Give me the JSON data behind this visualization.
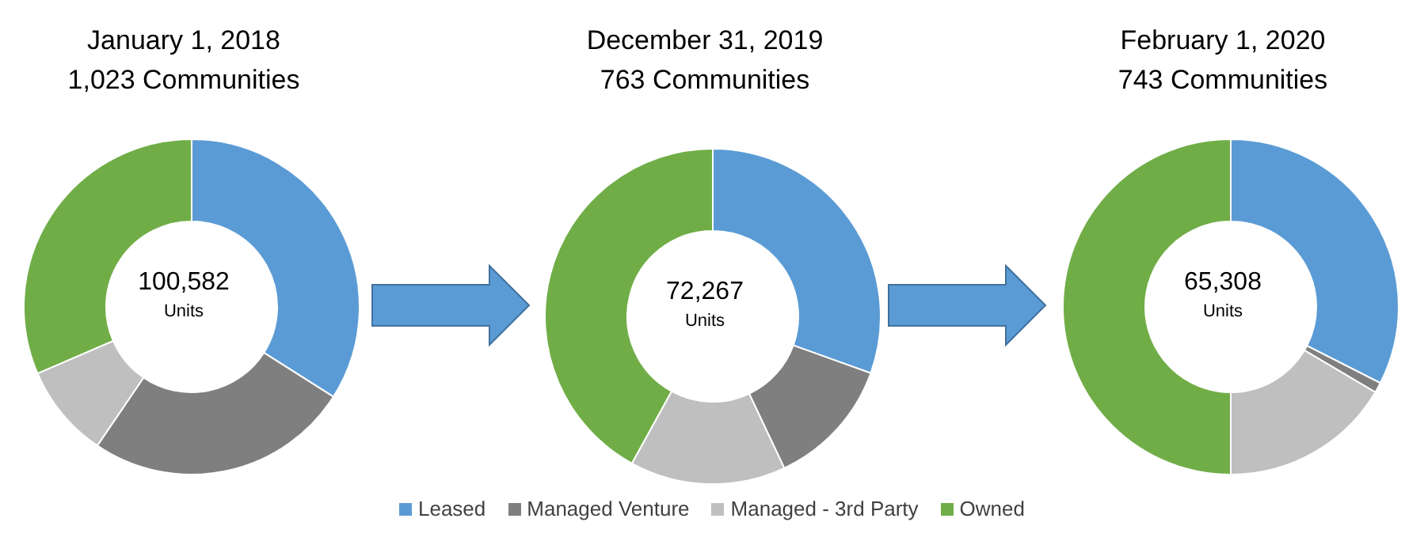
{
  "chart_data": [
    {
      "type": "donut",
      "title": "January 1, 2018",
      "subtitle": "1,023 Communities",
      "categories": [
        "Leased",
        "Managed Venture",
        "Managed - 3rd Party",
        "Owned"
      ],
      "values": [
        34,
        25.5,
        9,
        31.5
      ],
      "colors": [
        "#5b9bd5",
        "#7f7f7f",
        "#bfbfbf",
        "#70ad47"
      ],
      "annotations": [
        "100,582",
        "Units"
      ],
      "legend": "bottom"
    },
    {
      "type": "donut",
      "title": "December 31, 2019",
      "subtitle": "763 Communities",
      "categories": [
        null,
        null,
        null,
        null
      ],
      "values": [
        30.5,
        12.5,
        15,
        42
      ],
      "colors": [
        "#5b9bd5",
        "#7f7f7f",
        "#bfbfbf",
        "#70ad47"
      ],
      "annotations": [
        "72,267",
        "Units"
      ]
    },
    {
      "type": "donut",
      "title": "February 1, 2020",
      "subtitle": "743 Communities",
      "categories": [
        null,
        null,
        null,
        null
      ],
      "values": [
        32.5,
        1,
        16.5,
        50
      ],
      "colors": [
        "#5b9bd5",
        "#7f7f7f",
        "#bfbfbf",
        "#70ad47"
      ],
      "annotations": [
        "65,308",
        "Units"
      ]
    }
  ]
}
